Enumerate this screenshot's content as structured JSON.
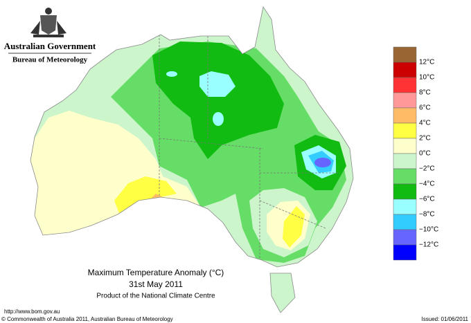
{
  "header": {
    "government": "Australian Government",
    "bureau": "Bureau of Meteorology"
  },
  "legend": {
    "colors": [
      "#996633",
      "#cc0000",
      "#ff3333",
      "#ff9999",
      "#ffbb66",
      "#ffff44",
      "#ffffcc",
      "#ccf5cc",
      "#66dd66",
      "#11bb11",
      "#99ffff",
      "#33ccff",
      "#6666ff",
      "#0000ff"
    ],
    "labels": [
      "12°C",
      "10°C",
      "8°C",
      "6°C",
      "4°C",
      "2°C",
      "0°C",
      "−2°C",
      "−4°C",
      "−6°C",
      "−8°C",
      "−10°C",
      "−12°C"
    ]
  },
  "caption": {
    "title": "Maximum Temperature Anomaly (°C)",
    "date": "31st May 2011",
    "product": "Product of the National Climate Centre"
  },
  "footer": {
    "url": "http://www.bom.gov.au",
    "copyright": "© Commonwealth of Australia 2011, Australian Bureau of Meteorology",
    "issued": "Issued: 01/06/2011"
  }
}
